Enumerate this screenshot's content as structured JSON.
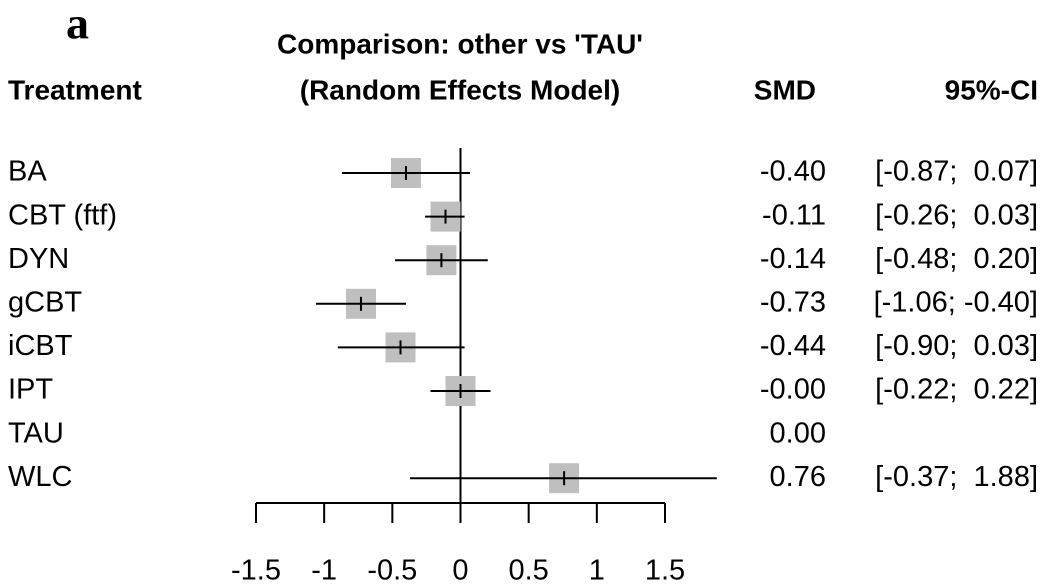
{
  "chart_data": {
    "type": "forest",
    "panel_label": "a",
    "title": "Comparison: other vs 'TAU'",
    "subtitle": "(Random Effects Model)",
    "column_headers": [
      "Treatment",
      "SMD",
      "95%-CI"
    ],
    "categories": [
      "BA",
      "CBT (ftf)",
      "DYN",
      "gCBT",
      "iCBT",
      "IPT",
      "TAU",
      "WLC"
    ],
    "values": [
      -0.4,
      -0.11,
      -0.14,
      -0.73,
      -0.44,
      0,
      0,
      0.76
    ],
    "value_labels": [
      "-0.40",
      "-0.11",
      "-0.14",
      "-0.73",
      "-0.44",
      "-0.00",
      "0.00",
      "0.76"
    ],
    "lower": [
      -0.87,
      -0.26,
      -0.48,
      -1.06,
      -0.9,
      -0.22,
      null,
      -0.37
    ],
    "upper": [
      0.07,
      0.03,
      0.2,
      -0.4,
      0.03,
      0.22,
      null,
      1.88
    ],
    "ci_labels": [
      "[-0.87;  0.07]",
      "[-0.26;  0.03]",
      "[-0.48;  0.20]",
      "[-1.06; -0.40]",
      "[-0.90;  0.03]",
      "[-0.22;  0.22]",
      null,
      "[-0.37;  1.88]"
    ],
    "color": "#bfbfbf",
    "xlim": [
      -1.5,
      1.5
    ],
    "xticks": [
      -1.5,
      -1,
      -0.5,
      0,
      0.5,
      1,
      1.5
    ]
  }
}
